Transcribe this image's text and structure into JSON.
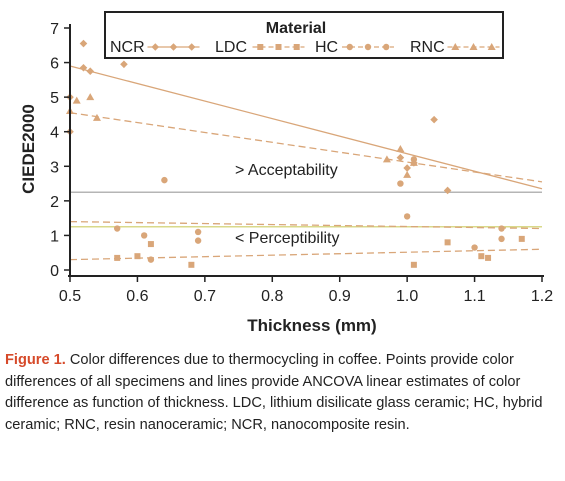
{
  "chart_data": {
    "type": "scatter",
    "title": "",
    "xlabel": "Thickness (mm)",
    "ylabel": "CIEDE2000",
    "xlim": [
      0.5,
      1.2
    ],
    "ylim": [
      0,
      7
    ],
    "xticks": [
      0.5,
      0.6,
      0.7,
      0.8,
      0.9,
      1.0,
      1.1,
      1.2
    ],
    "xtick_labels": [
      "0.5",
      "0.6",
      "0.7",
      "0.8",
      "0.9",
      "1.0",
      "1.1",
      "1.2"
    ],
    "yticks": [
      0,
      1,
      2,
      3,
      4,
      5,
      6,
      7
    ],
    "ytick_labels": [
      "0",
      "1",
      "2",
      "3",
      "4",
      "5",
      "6",
      "7"
    ],
    "grid": false,
    "legend": {
      "title": "Material",
      "position": "top",
      "entries": [
        "NCR",
        "LDC",
        "HC",
        "RNC"
      ]
    },
    "marker_color": "#d9a679",
    "series": [
      {
        "name": "NCR",
        "marker": "diamond",
        "line_style": "solid",
        "points": [
          [
            0.5,
            4.0
          ],
          [
            0.5,
            5.0
          ],
          [
            0.52,
            6.55
          ],
          [
            0.52,
            5.85
          ],
          [
            0.53,
            5.75
          ],
          [
            0.58,
            5.95
          ],
          [
            0.99,
            3.25
          ],
          [
            1.0,
            2.95
          ],
          [
            1.01,
            3.1
          ],
          [
            1.04,
            4.35
          ],
          [
            1.06,
            2.3
          ]
        ],
        "fit": [
          [
            0.5,
            5.9
          ],
          [
            1.2,
            2.35
          ]
        ]
      },
      {
        "name": "LDC",
        "marker": "square",
        "line_style": "dashed",
        "points": [
          [
            0.57,
            0.35
          ],
          [
            0.6,
            0.4
          ],
          [
            0.62,
            0.75
          ],
          [
            0.68,
            0.15
          ],
          [
            1.01,
            0.15
          ],
          [
            1.06,
            0.8
          ],
          [
            1.11,
            0.4
          ],
          [
            1.12,
            0.35
          ],
          [
            1.17,
            0.9
          ]
        ],
        "fit": [
          [
            0.5,
            0.3
          ],
          [
            1.2,
            0.6
          ]
        ]
      },
      {
        "name": "HC",
        "marker": "circle",
        "line_style": "dashed",
        "points": [
          [
            0.57,
            1.2
          ],
          [
            0.61,
            1.0
          ],
          [
            0.62,
            0.3
          ],
          [
            0.64,
            2.6
          ],
          [
            0.69,
            0.85
          ],
          [
            0.69,
            1.1
          ],
          [
            0.99,
            2.5
          ],
          [
            1.0,
            1.55
          ],
          [
            1.01,
            3.2
          ],
          [
            1.1,
            0.65
          ],
          [
            1.14,
            0.9
          ],
          [
            1.14,
            1.2
          ]
        ],
        "fit": [
          [
            0.5,
            1.4
          ],
          [
            1.2,
            1.2
          ]
        ]
      },
      {
        "name": "RNC",
        "marker": "triangle",
        "line_style": "dashed",
        "points": [
          [
            0.5,
            4.6
          ],
          [
            0.51,
            4.9
          ],
          [
            0.53,
            5.0
          ],
          [
            0.54,
            4.4
          ],
          [
            0.97,
            3.2
          ],
          [
            0.99,
            3.5
          ],
          [
            1.0,
            2.75
          ],
          [
            1.01,
            3.1
          ]
        ],
        "fit": [
          [
            0.5,
            4.55
          ],
          [
            1.2,
            2.55
          ]
        ]
      }
    ],
    "reference_lines": [
      {
        "label": "> Acceptability",
        "y": 2.25,
        "color": "#b5b5b5"
      },
      {
        "label": "< Perceptibility",
        "y": 1.25,
        "color": "#d9d98a"
      }
    ]
  },
  "caption": {
    "label": "Figure 1.",
    "text": " Color differences due to thermocycling in coffee. Points provide color differences of all specimens and lines provide ANCOVA linear estimates of color difference as function of thickness. LDC, lithium disilicate glass ceramic; HC, hybrid ceramic; RNC, resin nanoceramic; NCR, nanocomposite resin."
  }
}
